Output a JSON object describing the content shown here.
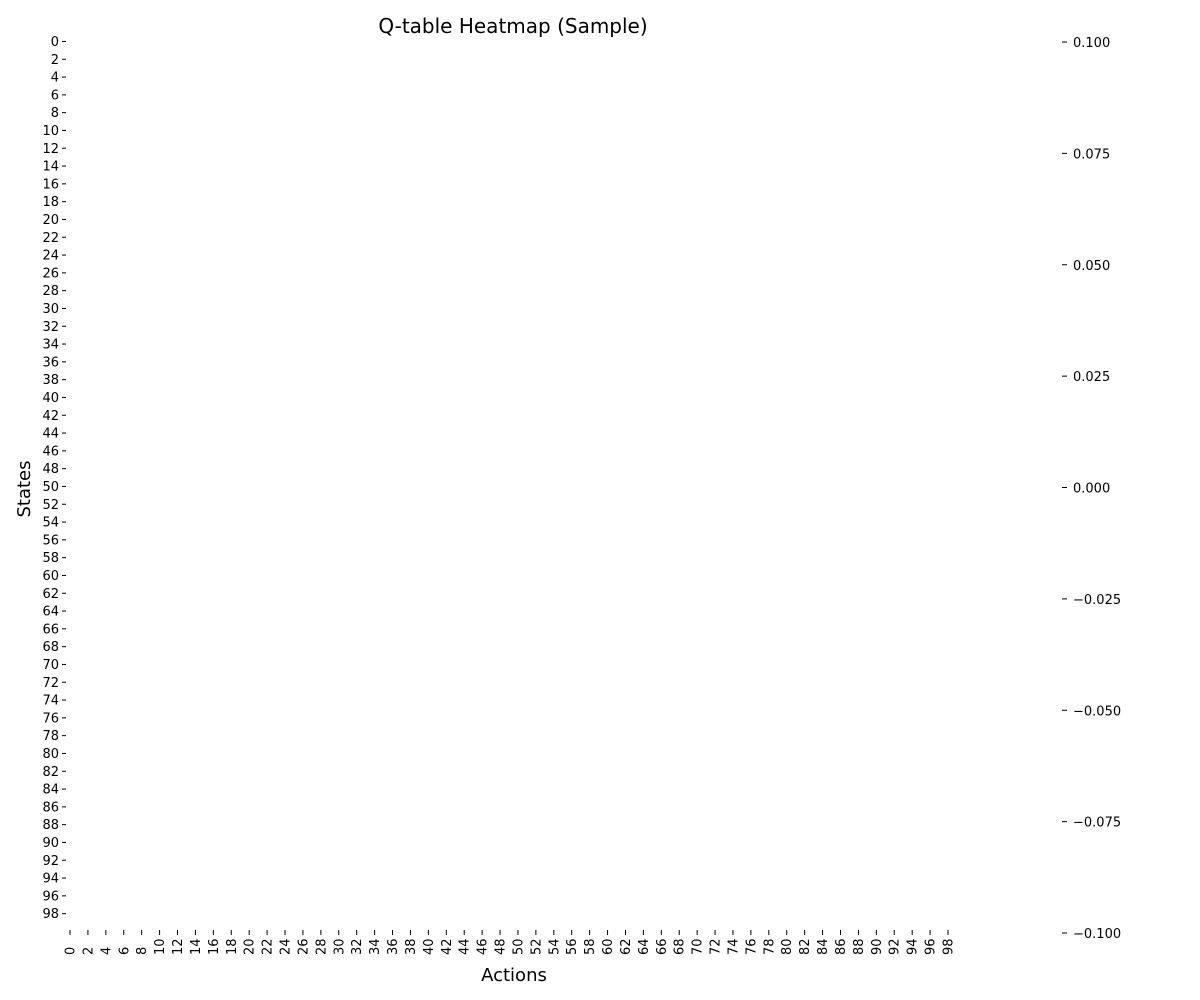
{
  "chart_data": {
    "type": "heatmap",
    "title": "Q-table Heatmap (Sample)",
    "xlabel": "Actions",
    "ylabel": "States",
    "rows": 100,
    "cols": 100,
    "x_tick_labels": [
      "0",
      "2",
      "4",
      "6",
      "8",
      "10",
      "12",
      "14",
      "16",
      "18",
      "20",
      "22",
      "24",
      "26",
      "28",
      "30",
      "32",
      "34",
      "36",
      "38",
      "40",
      "42",
      "44",
      "46",
      "48",
      "50",
      "52",
      "54",
      "56",
      "58",
      "60",
      "62",
      "64",
      "66",
      "68",
      "70",
      "72",
      "74",
      "76",
      "78",
      "80",
      "82",
      "84",
      "86",
      "88",
      "90",
      "92",
      "94",
      "96",
      "98"
    ],
    "y_tick_labels": [
      "0",
      "2",
      "4",
      "6",
      "8",
      "10",
      "12",
      "14",
      "16",
      "18",
      "20",
      "22",
      "24",
      "26",
      "28",
      "30",
      "32",
      "34",
      "36",
      "38",
      "40",
      "42",
      "44",
      "46",
      "48",
      "50",
      "52",
      "54",
      "56",
      "58",
      "60",
      "62",
      "64",
      "66",
      "68",
      "70",
      "72",
      "74",
      "76",
      "78",
      "80",
      "82",
      "84",
      "86",
      "88",
      "90",
      "92",
      "94",
      "96",
      "98"
    ],
    "values": "all cells equal to 0.0 (uniform)",
    "colorbar": {
      "range": [
        -0.1,
        0.1
      ],
      "tick_labels": [
        "0.100",
        "0.075",
        "0.050",
        "0.025",
        "0.000",
        "−0.025",
        "−0.050",
        "−0.075",
        "−0.100"
      ]
    },
    "cell_color": "#ffffff"
  }
}
